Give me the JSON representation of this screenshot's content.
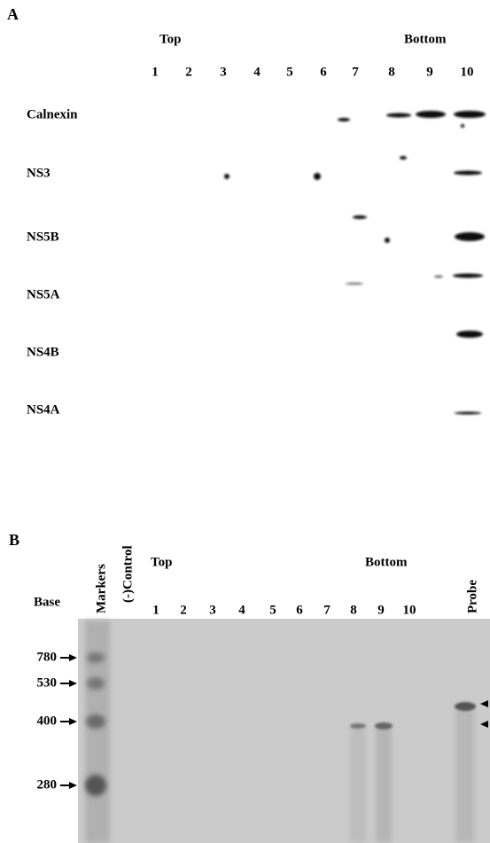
{
  "panel_a": {
    "label": "A",
    "top": "Top",
    "bottom": "Bottom",
    "lanes": [
      "1",
      "2",
      "3",
      "4",
      "5",
      "6",
      "7",
      "8",
      "9",
      "10"
    ],
    "rows": [
      "Calnexin",
      "NS3",
      "NS5B",
      "NS5A",
      "NS4B",
      "NS4A"
    ]
  },
  "panel_b": {
    "label": "B",
    "markers": "Markers",
    "control": "(-)Control",
    "top": "Top",
    "bottom": "Bottom",
    "lanes": [
      "1",
      "2",
      "3",
      "4",
      "5",
      "6",
      "7",
      "8",
      "9",
      "10"
    ],
    "probe": "Probe",
    "base": "Base",
    "sizes": [
      780,
      530,
      400,
      280
    ]
  }
}
